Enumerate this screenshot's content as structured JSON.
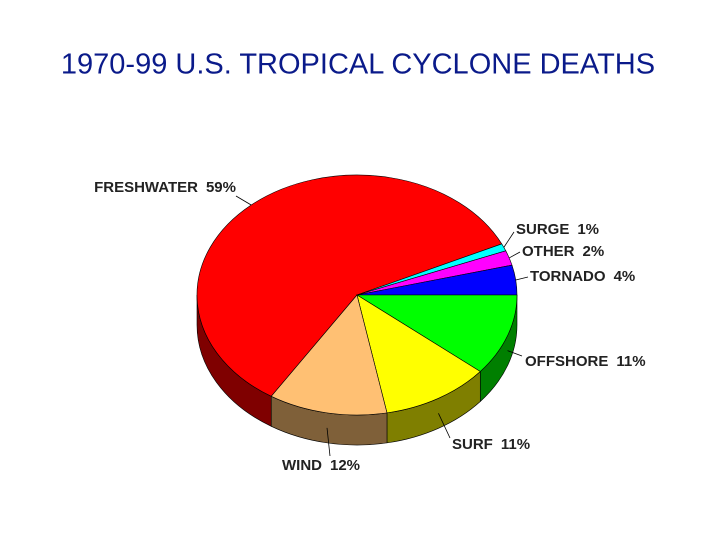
{
  "chart_data": {
    "type": "pie",
    "title": "1970-99 U.S. TROPICAL CYCLONE DEATHS",
    "categories": [
      "FRESHWATER",
      "SURGE",
      "OTHER",
      "TORNADO",
      "OFFSHORE",
      "SURF",
      "WIND"
    ],
    "values": [
      59,
      1,
      2,
      4,
      11,
      11,
      12
    ],
    "value_labels": [
      "59%",
      "1%",
      "2%",
      "4%",
      "11%",
      "11%",
      "12%"
    ],
    "colors": [
      "#ff0000",
      "#00ffff",
      "#ff00ff",
      "#0000ff",
      "#00ff00",
      "#ffff00",
      "#ffc073"
    ]
  }
}
